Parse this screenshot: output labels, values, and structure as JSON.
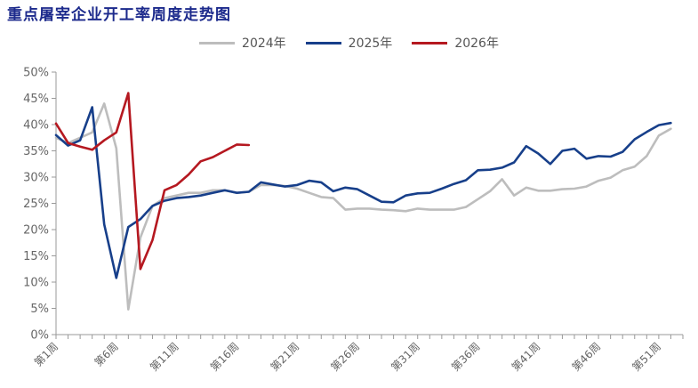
{
  "chart_data": {
    "type": "line",
    "title": "重点屠宰企业开工率周度走势图",
    "xlabel": "",
    "ylabel": "",
    "ylim": [
      0,
      50
    ],
    "y_ticks": [
      "0%",
      "5%",
      "10%",
      "15%",
      "20%",
      "25%",
      "30%",
      "35%",
      "40%",
      "45%",
      "50%"
    ],
    "x_tick_labels": [
      "第1周",
      "第6周",
      "第11周",
      "第16周",
      "第21周",
      "第26周",
      "第31周",
      "第36周",
      "第41周",
      "第46周",
      "第51周"
    ],
    "grid": false,
    "legend_position": "top-center",
    "series": [
      {
        "name": "2024年",
        "color": "#bdbdbd",
        "x": [
          1,
          2,
          3,
          4,
          5,
          6,
          7,
          8,
          9,
          10,
          11,
          12,
          13,
          14,
          15,
          16,
          17,
          18,
          19,
          20,
          21,
          22,
          23,
          24,
          25,
          26,
          27,
          28,
          29,
          30,
          31,
          32,
          33,
          34,
          35,
          36,
          37,
          38,
          39,
          40,
          41,
          42,
          43,
          44,
          45,
          46,
          47,
          48,
          49,
          50,
          51,
          52
        ],
        "values": [
          37.5,
          36.5,
          37.5,
          38.5,
          44.0,
          35.5,
          4.8,
          18.5,
          24.5,
          26.0,
          26.5,
          27.0,
          27.0,
          27.5,
          27.5,
          27.0,
          27.2,
          28.5,
          28.5,
          28.3,
          27.8,
          27.0,
          26.2,
          26.0,
          23.8,
          24.0,
          24.0,
          23.8,
          23.7,
          23.5,
          24.0,
          23.8,
          23.8,
          23.8,
          24.3,
          25.8,
          27.3,
          29.6,
          26.5,
          28.0,
          27.4,
          27.4,
          27.7,
          27.8,
          28.2,
          29.3,
          29.9,
          31.3,
          32.0,
          34.0,
          37.9,
          39.2
        ]
      },
      {
        "name": "2025年",
        "color": "#173f8a",
        "x": [
          1,
          2,
          3,
          4,
          5,
          6,
          7,
          8,
          9,
          10,
          11,
          12,
          13,
          14,
          15,
          16,
          17,
          18,
          19,
          20,
          21,
          22,
          23,
          24,
          25,
          26,
          27,
          28,
          29,
          30,
          31,
          32,
          33,
          34,
          35,
          36,
          37,
          38,
          39,
          40,
          41,
          42,
          43,
          44,
          45,
          46,
          47,
          48,
          49,
          50,
          51,
          52
        ],
        "values": [
          38.0,
          36.0,
          37.0,
          43.3,
          21.0,
          10.8,
          20.5,
          22.0,
          24.5,
          25.5,
          26.0,
          26.2,
          26.5,
          27.0,
          27.5,
          27.0,
          27.2,
          29.0,
          28.6,
          28.2,
          28.5,
          29.3,
          29.0,
          27.3,
          28.0,
          27.7,
          26.5,
          25.3,
          25.2,
          26.5,
          26.9,
          27.0,
          27.8,
          28.7,
          29.4,
          31.3,
          31.4,
          31.8,
          32.8,
          35.9,
          34.5,
          32.5,
          35.0,
          35.4,
          33.5,
          34.0,
          33.9,
          34.8,
          37.2,
          38.6,
          39.9,
          40.3
        ]
      },
      {
        "name": "2026年",
        "color": "#b51820",
        "x": [
          1,
          2,
          3,
          4,
          5,
          6,
          7,
          8,
          9,
          10,
          11,
          12,
          13,
          14,
          15,
          16,
          17
        ],
        "values": [
          40.2,
          36.5,
          35.8,
          35.2,
          37.0,
          38.5,
          46.0,
          12.5,
          18.0,
          27.5,
          28.5,
          30.5,
          33.0,
          33.8,
          35.0,
          36.2,
          36.1
        ]
      }
    ]
  }
}
